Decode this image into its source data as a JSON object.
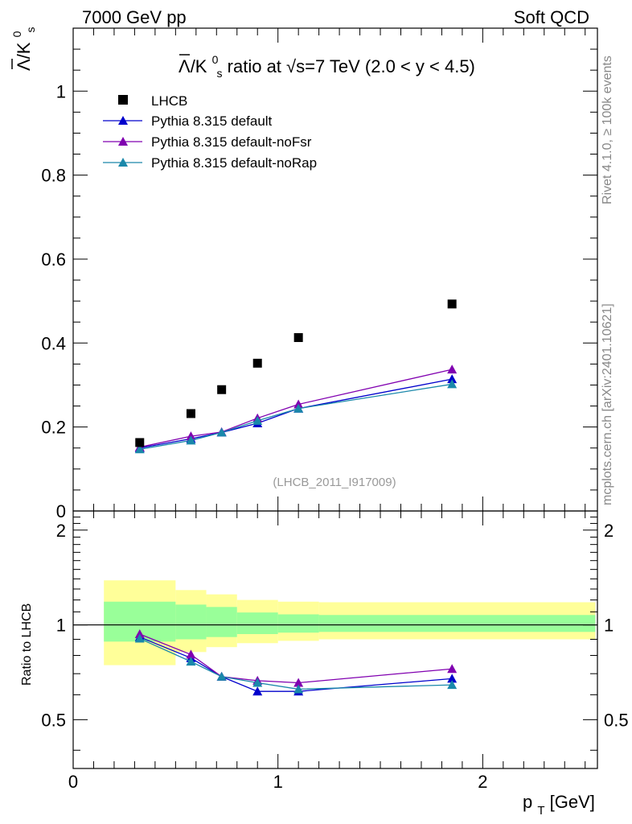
{
  "header": {
    "left": "7000 GeV pp",
    "right": "Soft QCD"
  },
  "side_labels": {
    "rivet": "Rivet 4.1.0, ≥ 100k events",
    "mcplots": "mcplots.cern.ch [arXiv:2401.10621]"
  },
  "colors": {
    "data": "#000000",
    "default": "#0000cc",
    "noFsr": "#8000b0",
    "noRap": "#1a88aa",
    "band_inner": "#99ff99",
    "band_outer": "#ffff99"
  },
  "chart_data": [
    {
      "type": "scatter",
      "title_parts": {
        "base": "Λ/K",
        "sup": "0",
        "sub": "s",
        "rest": " ratio at √s=7 TeV (2.0 < y < 4.5)"
      },
      "ylabel_parts": {
        "base": "Λ/K",
        "sup": "0",
        "sub": "s"
      },
      "analysis_id": "(LHCB_2011_I917009)",
      "xlim": [
        0,
        2.56
      ],
      "ylim": [
        0,
        1.15
      ],
      "yticks": [
        0,
        0.2,
        0.4,
        0.6,
        0.8,
        1
      ],
      "ytick_labels": [
        "0",
        "0.2",
        "0.4",
        "0.6",
        "0.8",
        "1"
      ],
      "legend": [
        "LHCB",
        "Pythia 8.315 default",
        "Pythia 8.315 default-noFsr",
        "Pythia 8.315 default-noRap"
      ],
      "legend_position": "top-left",
      "x": [
        0.325,
        0.575,
        0.725,
        0.9,
        1.1,
        1.85
      ],
      "data": {
        "name": "LHCB",
        "values": [
          0.163,
          0.232,
          0.289,
          0.352,
          0.413,
          0.493
        ]
      },
      "series": [
        {
          "name": "Pythia 8.315 default",
          "key": "default",
          "values": [
            0.15,
            0.172,
            0.187,
            0.209,
            0.244,
            0.314
          ]
        },
        {
          "name": "Pythia 8.315 default-noFsr",
          "key": "noFsr",
          "values": [
            0.152,
            0.178,
            0.188,
            0.221,
            0.254,
            0.337
          ]
        },
        {
          "name": "Pythia 8.315 default-noRap",
          "key": "noRap",
          "values": [
            0.147,
            0.168,
            0.187,
            0.215,
            0.244,
            0.302
          ]
        }
      ]
    },
    {
      "type": "line",
      "ylabel": "Ratio to LHCB",
      "xlabel_parts": {
        "base": "p",
        "sub": "T",
        "rest": " [GeV]"
      },
      "xlim": [
        0,
        2.56
      ],
      "ylim": [
        0.35,
        2.3
      ],
      "xticks": [
        0,
        1,
        2
      ],
      "xtick_labels": [
        "0",
        "1",
        "2"
      ],
      "yticks": [
        0.5,
        1,
        2
      ],
      "ytick_labels": [
        "0.5",
        "1",
        "2"
      ],
      "bins": [
        {
          "lo": 0.15,
          "hi": 0.5,
          "inner": [
            0.885,
            1.185
          ],
          "outer": [
            0.745,
            1.385
          ]
        },
        {
          "lo": 0.5,
          "hi": 0.65,
          "inner": [
            0.9,
            1.16
          ],
          "outer": [
            0.82,
            1.29
          ]
        },
        {
          "lo": 0.65,
          "hi": 0.8,
          "inner": [
            0.915,
            1.14
          ],
          "outer": [
            0.85,
            1.25
          ]
        },
        {
          "lo": 0.8,
          "hi": 1.0,
          "inner": [
            0.935,
            1.095
          ],
          "outer": [
            0.875,
            1.2
          ]
        },
        {
          "lo": 1.0,
          "hi": 1.2,
          "inner": [
            0.945,
            1.08
          ],
          "outer": [
            0.89,
            1.185
          ]
        },
        {
          "lo": 1.2,
          "hi": 2.55,
          "inner": [
            0.95,
            1.075
          ],
          "outer": [
            0.9,
            1.18
          ]
        }
      ],
      "x": [
        0.325,
        0.575,
        0.725,
        0.9,
        1.1,
        1.85
      ],
      "series": [
        {
          "name": "Pythia 8.315 default",
          "key": "default",
          "values": [
            0.915,
            0.785,
            0.685,
            0.615,
            0.615,
            0.675
          ]
        },
        {
          "name": "Pythia 8.315 default-noFsr",
          "key": "noFsr",
          "values": [
            0.935,
            0.805,
            0.685,
            0.665,
            0.655,
            0.725
          ]
        },
        {
          "name": "Pythia 8.315 default-noRap",
          "key": "noRap",
          "values": [
            0.905,
            0.765,
            0.685,
            0.655,
            0.625,
            0.645
          ]
        }
      ]
    }
  ]
}
